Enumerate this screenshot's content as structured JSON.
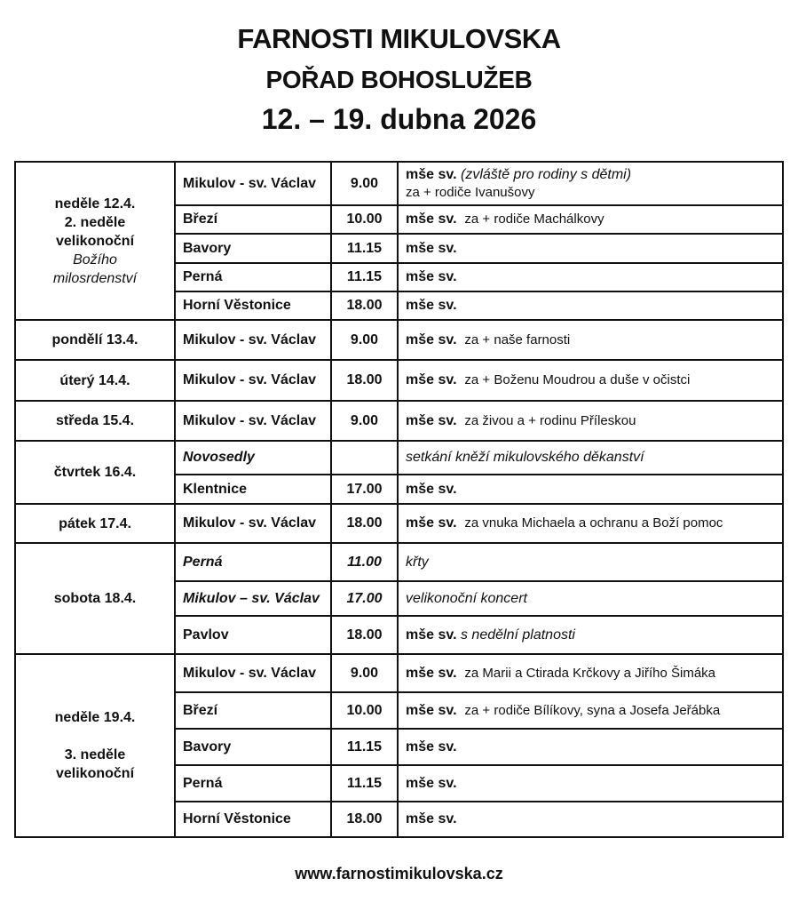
{
  "header": {
    "title": "FARNOSTI MIKULOVSKA",
    "subtitle": "POŘAD BOHOSLUŽEB",
    "dates": "12. – 19. dubna 2026"
  },
  "schedule": [
    {
      "day": [
        {
          "text": "neděle 12.4."
        },
        {
          "text": "2. neděle"
        },
        {
          "text": "velikonoční"
        },
        {
          "text": "Božího",
          "italic": true
        },
        {
          "text": "milosrdenství",
          "italic": true
        }
      ],
      "services": [
        {
          "place": "Mikulov - sv. Václav",
          "time": "9.00",
          "desc_bold": "mše sv.",
          "desc_rest": "(zvláště pro rodiny s dětmi)",
          "rest_italic": true,
          "desc_line2": "za + rodiče Ivanušovy"
        },
        {
          "place": "Březí",
          "time": "10.00",
          "desc_bold": "mše sv.",
          "desc_rest": "za + rodiče Machálkovy"
        },
        {
          "place": "Bavory",
          "time": "11.15",
          "desc_bold": "mše sv."
        },
        {
          "place": "Perná",
          "time": "11.15",
          "desc_bold": "mše sv."
        },
        {
          "place": "Horní Věstonice",
          "time": "18.00",
          "desc_bold": "mše sv."
        }
      ]
    },
    {
      "day": [
        {
          "text": "pondělí 13.4."
        }
      ],
      "services": [
        {
          "place": "Mikulov - sv. Václav",
          "time": "9.00",
          "desc_bold": "mše sv.",
          "desc_rest": "za + naše farnosti"
        }
      ]
    },
    {
      "day": [
        {
          "text": "úterý 14.4."
        }
      ],
      "services": [
        {
          "place": "Mikulov - sv. Václav",
          "time": "18.00",
          "desc_bold": "mše sv.",
          "desc_rest": "za + Boženu Moudrou a duše v očistci"
        }
      ]
    },
    {
      "day": [
        {
          "text": "středa 15.4."
        }
      ],
      "services": [
        {
          "place": "Mikulov - sv. Václav",
          "time": "9.00",
          "desc_bold": "mše sv.",
          "desc_rest": "za živou a + rodinu Příleskou"
        }
      ]
    },
    {
      "day": [
        {
          "text": "čtvrtek 16.4."
        }
      ],
      "services": [
        {
          "place": "Novosedly",
          "italic": true,
          "time": "",
          "desc_italic": "setkání kněží mikulovského děkanství"
        },
        {
          "place": "Klentnice",
          "time": "17.00",
          "desc_bold": "mše sv."
        }
      ]
    },
    {
      "day": [
        {
          "text": "pátek 17.4."
        }
      ],
      "services": [
        {
          "place": "Mikulov - sv. Václav",
          "time": "18.00",
          "desc_bold": "mše sv.",
          "desc_rest": "za vnuka Michaela a ochranu a Boží pomoc"
        }
      ]
    },
    {
      "day": [
        {
          "text": "sobota 18.4."
        }
      ],
      "services": [
        {
          "place": "Perná",
          "italic": true,
          "time": "11.00",
          "desc_italic": "křty"
        },
        {
          "place": "Mikulov – sv. Václav",
          "italic": true,
          "time": "17.00",
          "desc_italic": "velikonoční koncert"
        },
        {
          "place": "Pavlov",
          "time": "18.00",
          "desc_bold": "mše sv.",
          "desc_rest": "s nedělní platnosti",
          "rest_italic": true
        }
      ]
    },
    {
      "day": [
        {
          "text": "neděle 19.4."
        },
        {
          "text": ""
        },
        {
          "text": "3. neděle"
        },
        {
          "text": "velikonoční"
        }
      ],
      "services": [
        {
          "place": "Mikulov - sv. Václav",
          "time": "9.00",
          "desc_bold": "mše sv.",
          "desc_rest": "za Marii a Ctirada Krčkovy a Jiřího Šimáka"
        },
        {
          "place": "Březí",
          "time": "10.00",
          "desc_bold": "mše sv.",
          "desc_rest": "za + rodiče Bílíkovy, syna a Josefa Jeřábka"
        },
        {
          "place": "Bavory",
          "time": "11.15",
          "desc_bold": "mše sv."
        },
        {
          "place": "Perná",
          "time": "11.15",
          "desc_bold": "mše sv."
        },
        {
          "place": "Horní Věstonice",
          "time": "18.00",
          "desc_bold": "mše sv."
        }
      ]
    }
  ],
  "footer": {
    "website": "www.farnostimikulovska.cz"
  }
}
